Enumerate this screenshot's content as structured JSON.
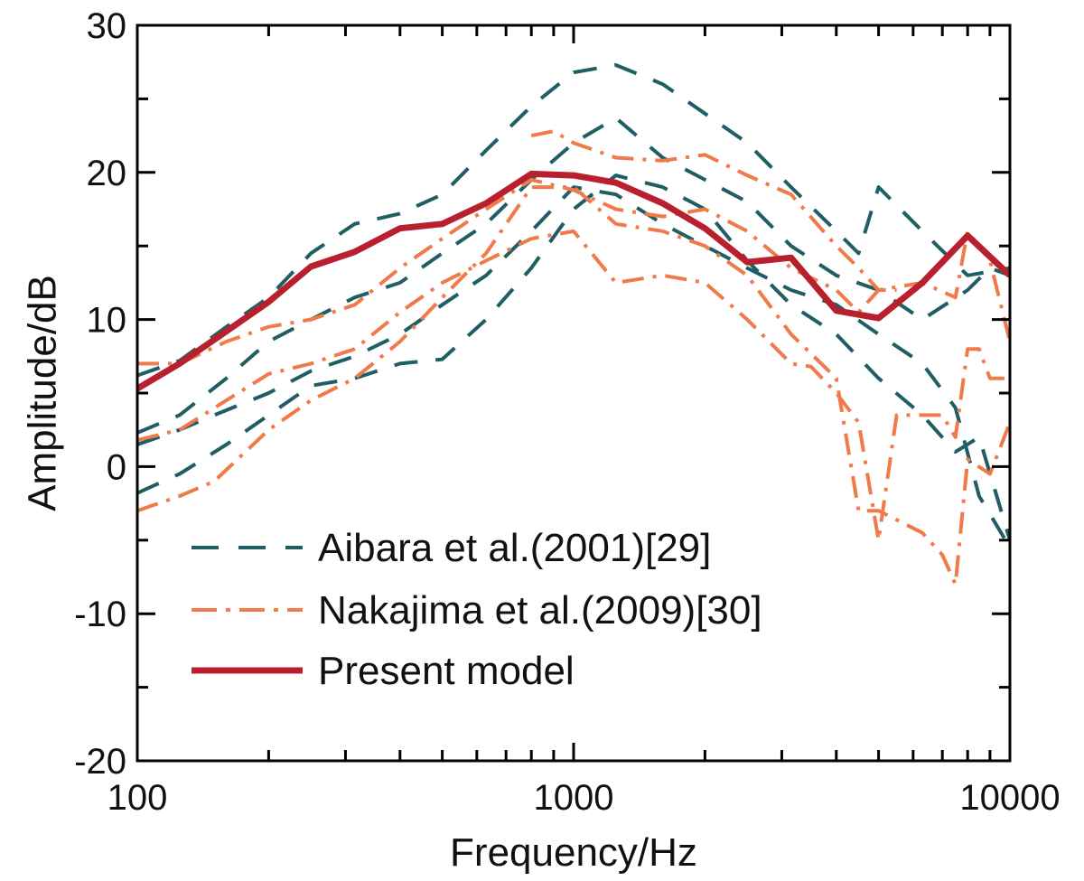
{
  "chart_data": {
    "type": "line",
    "xlabel": "Frequency/Hz",
    "ylabel": "Amplitude/dB",
    "xscale": "log",
    "xlim": [
      100,
      10000
    ],
    "ylim": [
      -20,
      30
    ],
    "x_ticks": [
      100,
      1000,
      10000
    ],
    "x_tick_labels": [
      "100",
      "1000",
      "10000"
    ],
    "y_ticks": [
      30,
      20,
      10,
      0,
      -10,
      -20
    ],
    "y_tick_labels": [
      "30",
      "20",
      "10",
      "0",
      "-10",
      "-20"
    ],
    "grid": false,
    "legend_position": "bottom-left",
    "colors": {
      "aibara": "#1f5f64",
      "nakajima": "#f07a4a",
      "present": "#b8202e",
      "frame": "#000000"
    },
    "legend": [
      {
        "key": "aibara",
        "label": "Aibara et al.(2001)[29]",
        "style": "dashed"
      },
      {
        "key": "nakajima",
        "label": "Nakajima et al.(2009)[30]",
        "style": "dashdot"
      },
      {
        "key": "present",
        "label": "Present model",
        "style": "solid"
      }
    ],
    "series": [
      {
        "group": "aibara",
        "style": "dashed",
        "points": [
          [
            100,
            6.2
          ],
          [
            125,
            7.2
          ],
          [
            160,
            9.5
          ],
          [
            200,
            11.5
          ],
          [
            250,
            14.5
          ],
          [
            315,
            16.5
          ],
          [
            400,
            17.2
          ],
          [
            500,
            18.5
          ],
          [
            630,
            21.5
          ],
          [
            800,
            24.5
          ],
          [
            1000,
            26.8
          ],
          [
            1250,
            27.3
          ],
          [
            1600,
            26
          ],
          [
            2000,
            24
          ],
          [
            2500,
            22
          ],
          [
            3150,
            19
          ],
          [
            4000,
            16
          ],
          [
            4500,
            14.5
          ],
          [
            5000,
            19
          ],
          [
            6300,
            16
          ],
          [
            8000,
            13
          ],
          [
            10000,
            13.5
          ]
        ]
      },
      {
        "group": "aibara",
        "style": "dashed",
        "points": [
          [
            100,
            2.3
          ],
          [
            125,
            3.5
          ],
          [
            160,
            6
          ],
          [
            200,
            8.5
          ],
          [
            250,
            10
          ],
          [
            315,
            11.5
          ],
          [
            400,
            12.5
          ],
          [
            500,
            14.5
          ],
          [
            630,
            16.5
          ],
          [
            800,
            19.5
          ],
          [
            1000,
            22
          ],
          [
            1250,
            23.7
          ],
          [
            1600,
            21
          ],
          [
            2000,
            19.5
          ],
          [
            2500,
            18
          ],
          [
            3150,
            15
          ],
          [
            4000,
            13
          ],
          [
            5000,
            12
          ],
          [
            6300,
            10
          ],
          [
            8000,
            12
          ],
          [
            9000,
            13.5
          ],
          [
            10000,
            13
          ]
        ]
      },
      {
        "group": "aibara",
        "style": "dashed",
        "points": [
          [
            100,
            -1.8
          ],
          [
            125,
            -0.5
          ],
          [
            160,
            1.5
          ],
          [
            200,
            3.5
          ],
          [
            250,
            5.5
          ],
          [
            315,
            6
          ],
          [
            400,
            7
          ],
          [
            500,
            7.3
          ],
          [
            630,
            10
          ],
          [
            800,
            13.5
          ],
          [
            1000,
            17.5
          ],
          [
            1250,
            19.8
          ],
          [
            1600,
            19
          ],
          [
            2000,
            17.5
          ],
          [
            2500,
            14
          ],
          [
            3150,
            11
          ],
          [
            4000,
            9
          ],
          [
            5000,
            6
          ],
          [
            6300,
            3.5
          ],
          [
            7500,
            1
          ],
          [
            8500,
            2
          ],
          [
            10000,
            -5
          ]
        ]
      },
      {
        "group": "aibara",
        "style": "dashed",
        "points": [
          [
            100,
            1.5
          ],
          [
            125,
            2.5
          ],
          [
            150,
            3.5
          ],
          [
            200,
            5
          ],
          [
            250,
            6.5
          ],
          [
            315,
            7.5
          ],
          [
            400,
            9
          ],
          [
            500,
            11
          ],
          [
            630,
            13
          ],
          [
            800,
            16
          ],
          [
            1000,
            19
          ],
          [
            1250,
            18.5
          ],
          [
            1600,
            16.5
          ],
          [
            2000,
            15
          ],
          [
            2500,
            13.5
          ],
          [
            3150,
            12
          ],
          [
            4000,
            11
          ],
          [
            5000,
            9
          ],
          [
            6300,
            7
          ],
          [
            7500,
            4
          ],
          [
            8500,
            -2
          ],
          [
            10000,
            -5.5
          ]
        ]
      },
      {
        "group": "nakajima",
        "style": "dashdot",
        "points": [
          [
            100,
            7
          ],
          [
            125,
            7
          ],
          [
            160,
            8.5
          ],
          [
            200,
            9.5
          ],
          [
            250,
            10
          ],
          [
            315,
            11
          ],
          [
            400,
            13.5
          ],
          [
            500,
            15.5
          ],
          [
            630,
            17.5
          ],
          [
            800,
            19.5
          ],
          [
            1000,
            18.8
          ],
          [
            1250,
            17.5
          ],
          [
            1600,
            17
          ],
          [
            2000,
            17.5
          ],
          [
            2500,
            16
          ],
          [
            3150,
            13.5
          ],
          [
            4000,
            12
          ],
          [
            4500,
            10.5
          ],
          [
            5000,
            12
          ],
          [
            6300,
            12.5
          ],
          [
            7500,
            11.5
          ],
          [
            8000,
            16
          ],
          [
            9000,
            14
          ],
          [
            10000,
            8.5
          ]
        ]
      },
      {
        "group": "nakajima",
        "style": "dashdot",
        "points": [
          [
            100,
            1.8
          ],
          [
            125,
            2.5
          ],
          [
            160,
            4.5
          ],
          [
            200,
            6.3
          ],
          [
            250,
            7
          ],
          [
            315,
            8
          ],
          [
            400,
            10.5
          ],
          [
            500,
            12.5
          ],
          [
            630,
            14
          ],
          [
            800,
            15.5
          ],
          [
            1000,
            16
          ],
          [
            1250,
            12.5
          ],
          [
            1600,
            13
          ],
          [
            2000,
            12.5
          ],
          [
            2500,
            10
          ],
          [
            3150,
            7
          ],
          [
            3500,
            6.8
          ],
          [
            4000,
            5
          ],
          [
            4500,
            3
          ],
          [
            5000,
            -5
          ],
          [
            5500,
            3.5
          ],
          [
            6300,
            3.5
          ],
          [
            7000,
            3.5
          ],
          [
            7500,
            2
          ],
          [
            8000,
            8
          ],
          [
            8500,
            8
          ],
          [
            9000,
            6
          ],
          [
            10000,
            6
          ]
        ]
      },
      {
        "group": "nakajima",
        "style": "dashdot",
        "points": [
          [
            100,
            -3
          ],
          [
            125,
            -2
          ],
          [
            150,
            -1
          ],
          [
            200,
            2.5
          ],
          [
            250,
            4.5
          ],
          [
            315,
            6
          ],
          [
            400,
            8.5
          ],
          [
            500,
            11.5
          ],
          [
            630,
            14.5
          ],
          [
            800,
            19
          ],
          [
            1000,
            19
          ],
          [
            1250,
            16.5
          ],
          [
            1600,
            16
          ],
          [
            2000,
            15
          ],
          [
            2500,
            13
          ],
          [
            3150,
            9
          ],
          [
            4000,
            6
          ],
          [
            4500,
            -3
          ],
          [
            5000,
            -3
          ],
          [
            6300,
            -4.5
          ],
          [
            7000,
            -6
          ],
          [
            7500,
            -8
          ],
          [
            8000,
            0.5
          ],
          [
            9000,
            -0.5
          ],
          [
            10000,
            3
          ]
        ]
      },
      {
        "group": "nakajima",
        "style": "dashdot",
        "points": [
          [
            800,
            22.5
          ],
          [
            900,
            22.8
          ],
          [
            1000,
            22
          ],
          [
            1250,
            21
          ],
          [
            1600,
            20.8
          ],
          [
            2000,
            21.2
          ],
          [
            2500,
            19.8
          ],
          [
            3150,
            18.5
          ],
          [
            4000,
            15
          ],
          [
            4500,
            13.5
          ],
          [
            5000,
            12
          ],
          [
            5500,
            12
          ]
        ]
      },
      {
        "group": "present",
        "style": "solid",
        "points": [
          [
            100,
            5.3
          ],
          [
            125,
            7
          ],
          [
            160,
            9.2
          ],
          [
            200,
            11.2
          ],
          [
            250,
            13.6
          ],
          [
            315,
            14.6
          ],
          [
            400,
            16.2
          ],
          [
            500,
            16.5
          ],
          [
            630,
            17.9
          ],
          [
            800,
            19.9
          ],
          [
            1000,
            19.8
          ],
          [
            1250,
            19.3
          ],
          [
            1600,
            17.9
          ],
          [
            2000,
            16.2
          ],
          [
            2500,
            13.9
          ],
          [
            3150,
            14.2
          ],
          [
            4000,
            10.6
          ],
          [
            5000,
            10.1
          ],
          [
            6300,
            12.5
          ],
          [
            8000,
            15.7
          ],
          [
            10000,
            13
          ]
        ]
      }
    ]
  }
}
